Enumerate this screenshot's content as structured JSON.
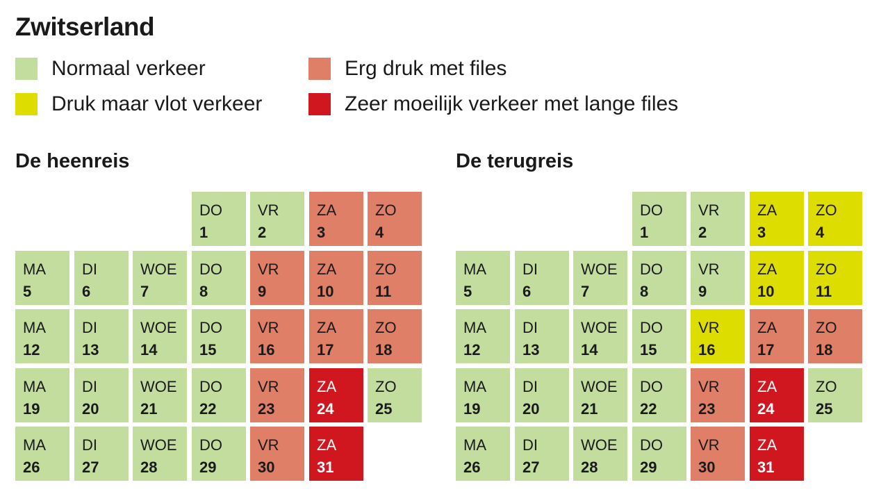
{
  "title": "Zwitserland",
  "colors": {
    "normaal": "#c3dd9f",
    "druk": "#dddd00",
    "erg": "#e07f68",
    "zeer": "#d0161e"
  },
  "legend": [
    {
      "label": "Normaal verkeer",
      "level": "normaal"
    },
    {
      "label": "Druk maar vlot verkeer",
      "level": "druk"
    },
    {
      "label": "Erg druk met files",
      "level": "erg"
    },
    {
      "label": "Zeer moeilijk verkeer met lange files",
      "level": "zeer"
    }
  ],
  "chart_data": [
    {
      "type": "table",
      "title": "De heenreis",
      "days": [
        {
          "day": "DO",
          "date": 1,
          "level": "normaal"
        },
        {
          "day": "VR",
          "date": 2,
          "level": "normaal"
        },
        {
          "day": "ZA",
          "date": 3,
          "level": "erg"
        },
        {
          "day": "ZO",
          "date": 4,
          "level": "erg"
        },
        {
          "day": "MA",
          "date": 5,
          "level": "normaal"
        },
        {
          "day": "DI",
          "date": 6,
          "level": "normaal"
        },
        {
          "day": "WOE",
          "date": 7,
          "level": "normaal"
        },
        {
          "day": "DO",
          "date": 8,
          "level": "normaal"
        },
        {
          "day": "VR",
          "date": 9,
          "level": "erg"
        },
        {
          "day": "ZA",
          "date": 10,
          "level": "erg"
        },
        {
          "day": "ZO",
          "date": 11,
          "level": "erg"
        },
        {
          "day": "MA",
          "date": 12,
          "level": "normaal"
        },
        {
          "day": "DI",
          "date": 13,
          "level": "normaal"
        },
        {
          "day": "WOE",
          "date": 14,
          "level": "normaal"
        },
        {
          "day": "DO",
          "date": 15,
          "level": "normaal"
        },
        {
          "day": "VR",
          "date": 16,
          "level": "erg"
        },
        {
          "day": "ZA",
          "date": 17,
          "level": "erg"
        },
        {
          "day": "ZO",
          "date": 18,
          "level": "erg"
        },
        {
          "day": "MA",
          "date": 19,
          "level": "normaal"
        },
        {
          "day": "DI",
          "date": 20,
          "level": "normaal"
        },
        {
          "day": "WOE",
          "date": 21,
          "level": "normaal"
        },
        {
          "day": "DO",
          "date": 22,
          "level": "normaal"
        },
        {
          "day": "VR",
          "date": 23,
          "level": "erg"
        },
        {
          "day": "ZA",
          "date": 24,
          "level": "zeer"
        },
        {
          "day": "ZO",
          "date": 25,
          "level": "normaal"
        },
        {
          "day": "MA",
          "date": 26,
          "level": "normaal"
        },
        {
          "day": "DI",
          "date": 27,
          "level": "normaal"
        },
        {
          "day": "WOE",
          "date": 28,
          "level": "normaal"
        },
        {
          "day": "DO",
          "date": 29,
          "level": "normaal"
        },
        {
          "day": "VR",
          "date": 30,
          "level": "erg"
        },
        {
          "day": "ZA",
          "date": 31,
          "level": "zeer"
        }
      ]
    },
    {
      "type": "table",
      "title": "De terugreis",
      "days": [
        {
          "day": "DO",
          "date": 1,
          "level": "normaal"
        },
        {
          "day": "VR",
          "date": 2,
          "level": "normaal"
        },
        {
          "day": "ZA",
          "date": 3,
          "level": "druk"
        },
        {
          "day": "ZO",
          "date": 4,
          "level": "druk"
        },
        {
          "day": "MA",
          "date": 5,
          "level": "normaal"
        },
        {
          "day": "DI",
          "date": 6,
          "level": "normaal"
        },
        {
          "day": "WOE",
          "date": 7,
          "level": "normaal"
        },
        {
          "day": "DO",
          "date": 8,
          "level": "normaal"
        },
        {
          "day": "VR",
          "date": 9,
          "level": "normaal"
        },
        {
          "day": "ZA",
          "date": 10,
          "level": "druk"
        },
        {
          "day": "ZO",
          "date": 11,
          "level": "druk"
        },
        {
          "day": "MA",
          "date": 12,
          "level": "normaal"
        },
        {
          "day": "DI",
          "date": 13,
          "level": "normaal"
        },
        {
          "day": "WOE",
          "date": 14,
          "level": "normaal"
        },
        {
          "day": "DO",
          "date": 15,
          "level": "normaal"
        },
        {
          "day": "VR",
          "date": 16,
          "level": "druk"
        },
        {
          "day": "ZA",
          "date": 17,
          "level": "erg"
        },
        {
          "day": "ZO",
          "date": 18,
          "level": "erg"
        },
        {
          "day": "MA",
          "date": 19,
          "level": "normaal"
        },
        {
          "day": "DI",
          "date": 20,
          "level": "normaal"
        },
        {
          "day": "WOE",
          "date": 21,
          "level": "normaal"
        },
        {
          "day": "DO",
          "date": 22,
          "level": "normaal"
        },
        {
          "day": "VR",
          "date": 23,
          "level": "erg"
        },
        {
          "day": "ZA",
          "date": 24,
          "level": "zeer"
        },
        {
          "day": "ZO",
          "date": 25,
          "level": "normaal"
        },
        {
          "day": "MA",
          "date": 26,
          "level": "normaal"
        },
        {
          "day": "DI",
          "date": 27,
          "level": "normaal"
        },
        {
          "day": "WOE",
          "date": 28,
          "level": "normaal"
        },
        {
          "day": "DO",
          "date": 29,
          "level": "normaal"
        },
        {
          "day": "VR",
          "date": 30,
          "level": "erg"
        },
        {
          "day": "ZA",
          "date": 31,
          "level": "zeer"
        }
      ]
    }
  ]
}
